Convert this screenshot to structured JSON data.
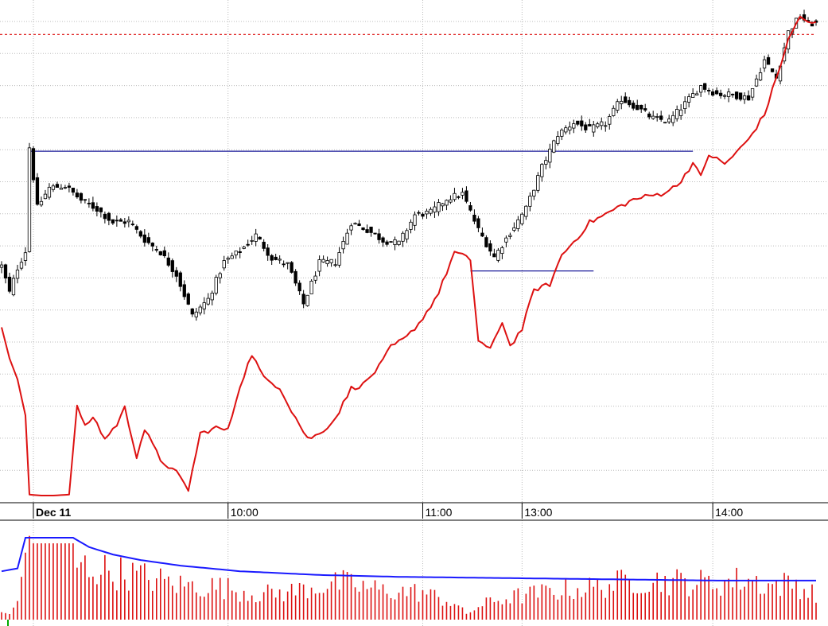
{
  "chart_data": {
    "type": "candlestick",
    "time_axis": {
      "labels": [
        {
          "text": "Dec 11",
          "bar": 8
        },
        {
          "text": "10:00",
          "bar": 57
        },
        {
          "text": "11:00",
          "bar": 106
        },
        {
          "text": "13:00",
          "bar": 131
        },
        {
          "text": "14:00",
          "bar": 179
        }
      ],
      "total_bars": 206
    },
    "price_pane": {
      "ylim": [
        0,
        1000
      ],
      "reference_line_dashed": 940,
      "horizontal_lines": [
        {
          "y": 704,
          "from_bar": 7,
          "to_bar": 174
        },
        {
          "y": 462,
          "from_bar": 118,
          "to_bar": 149
        }
      ],
      "price_anchors": [
        [
          0,
          472
        ],
        [
          2,
          418
        ],
        [
          4,
          468
        ],
        [
          6,
          502
        ],
        [
          7,
          712
        ],
        [
          9,
          590
        ],
        [
          12,
          630
        ],
        [
          16,
          634
        ],
        [
          20,
          605
        ],
        [
          24,
          587
        ],
        [
          28,
          560
        ],
        [
          32,
          562
        ],
        [
          36,
          525
        ],
        [
          40,
          500
        ],
        [
          44,
          455
        ],
        [
          48,
          371
        ],
        [
          52,
          405
        ],
        [
          56,
          480
        ],
        [
          60,
          502
        ],
        [
          64,
          534
        ],
        [
          68,
          488
        ],
        [
          72,
          475
        ],
        [
          76,
          395
        ],
        [
          80,
          478
        ],
        [
          84,
          480
        ],
        [
          88,
          560
        ],
        [
          92,
          545
        ],
        [
          96,
          524
        ],
        [
          100,
          518
        ],
        [
          104,
          575
        ],
        [
          108,
          580
        ],
        [
          112,
          608
        ],
        [
          116,
          618
        ],
        [
          120,
          545
        ],
        [
          124,
          490
        ],
        [
          128,
          540
        ],
        [
          132,
          588
        ],
        [
          136,
          672
        ],
        [
          140,
          738
        ],
        [
          144,
          762
        ],
        [
          148,
          748
        ],
        [
          152,
          760
        ],
        [
          156,
          810
        ],
        [
          160,
          792
        ],
        [
          164,
          770
        ],
        [
          168,
          765
        ],
        [
          172,
          800
        ],
        [
          176,
          836
        ],
        [
          180,
          820
        ],
        [
          184,
          818
        ],
        [
          188,
          812
        ],
        [
          192,
          888
        ],
        [
          195,
          852
        ],
        [
          198,
          945
        ],
        [
          201,
          978
        ],
        [
          203,
          962
        ]
      ],
      "indicator_anchors": [
        [
          0,
          348
        ],
        [
          2,
          285
        ],
        [
          4,
          243
        ],
        [
          6,
          170
        ],
        [
          7,
          10
        ],
        [
          10,
          8
        ],
        [
          13,
          8
        ],
        [
          17,
          10
        ],
        [
          19,
          190
        ],
        [
          21,
          146
        ],
        [
          23,
          168
        ],
        [
          26,
          122
        ],
        [
          29,
          152
        ],
        [
          31,
          185
        ],
        [
          34,
          88
        ],
        [
          36,
          142
        ],
        [
          40,
          80
        ],
        [
          44,
          54
        ],
        [
          47,
          20
        ],
        [
          50,
          133
        ],
        [
          54,
          145
        ],
        [
          57,
          140
        ],
        [
          60,
          230
        ],
        [
          63,
          294
        ],
        [
          66,
          245
        ],
        [
          70,
          227
        ],
        [
          73,
          180
        ],
        [
          77,
          123
        ],
        [
          80,
          132
        ],
        [
          84,
          164
        ],
        [
          88,
          225
        ],
        [
          91,
          232
        ],
        [
          95,
          268
        ],
        [
          98,
          308
        ],
        [
          102,
          328
        ],
        [
          106,
          366
        ],
        [
          110,
          418
        ],
        [
          114,
          500
        ],
        [
          118,
          485
        ],
        [
          120,
          322
        ],
        [
          123,
          302
        ],
        [
          126,
          360
        ],
        [
          128,
          310
        ],
        [
          131,
          345
        ],
        [
          134,
          424
        ],
        [
          138,
          435
        ],
        [
          141,
          494
        ],
        [
          145,
          530
        ],
        [
          148,
          560
        ],
        [
          151,
          572
        ],
        [
          155,
          590
        ],
        [
          159,
          606
        ],
        [
          162,
          612
        ],
        [
          166,
          618
        ],
        [
          170,
          634
        ],
        [
          174,
          680
        ],
        [
          176,
          652
        ],
        [
          178,
          698
        ],
        [
          182,
          678
        ],
        [
          186,
          710
        ],
        [
          188,
          728
        ],
        [
          192,
          778
        ],
        [
          195,
          852
        ],
        [
          198,
          928
        ],
        [
          201,
          978
        ],
        [
          203,
          962
        ]
      ]
    },
    "volume_pane": {
      "ylim": [
        0,
        100
      ],
      "volume_anchors": [
        [
          0,
          8
        ],
        [
          2,
          6
        ],
        [
          4,
          20
        ],
        [
          6,
          72
        ],
        [
          7,
          90
        ],
        [
          8,
          82
        ],
        [
          18,
          82
        ],
        [
          19,
          60
        ],
        [
          25,
          55
        ],
        [
          35,
          48
        ],
        [
          45,
          38
        ],
        [
          55,
          36
        ],
        [
          65,
          28
        ],
        [
          72,
          30
        ],
        [
          78,
          36
        ],
        [
          86,
          40
        ],
        [
          96,
          32
        ],
        [
          106,
          30
        ],
        [
          114,
          18
        ],
        [
          117,
          6
        ],
        [
          119,
          12
        ],
        [
          123,
          20
        ],
        [
          130,
          26
        ],
        [
          140,
          32
        ],
        [
          150,
          36
        ],
        [
          160,
          44
        ],
        [
          170,
          42
        ],
        [
          180,
          40
        ],
        [
          188,
          45
        ],
        [
          193,
          38
        ],
        [
          200,
          40
        ],
        [
          203,
          30
        ]
      ],
      "avg_anchors": [
        [
          0,
          52
        ],
        [
          4,
          55
        ],
        [
          6,
          88
        ],
        [
          18,
          88
        ],
        [
          22,
          78
        ],
        [
          28,
          70
        ],
        [
          35,
          64
        ],
        [
          45,
          58
        ],
        [
          60,
          52
        ],
        [
          80,
          48
        ],
        [
          100,
          46
        ],
        [
          120,
          45
        ],
        [
          140,
          44
        ],
        [
          160,
          43
        ],
        [
          180,
          42
        ],
        [
          203,
          42
        ]
      ]
    },
    "colors": {
      "candle_body_up": "#ffffff",
      "candle_body_down": "#000000",
      "indicator": "#dd1111",
      "volume_bars": "#dd1111",
      "volume_avg": "#1a1aff",
      "horizontal_line": "#1a1a99",
      "reference_line": "#dd1111",
      "grid": "#bbbbbb",
      "volume_marker": "#00aa00"
    },
    "title": "",
    "xlabel": "",
    "ylabel": ""
  }
}
